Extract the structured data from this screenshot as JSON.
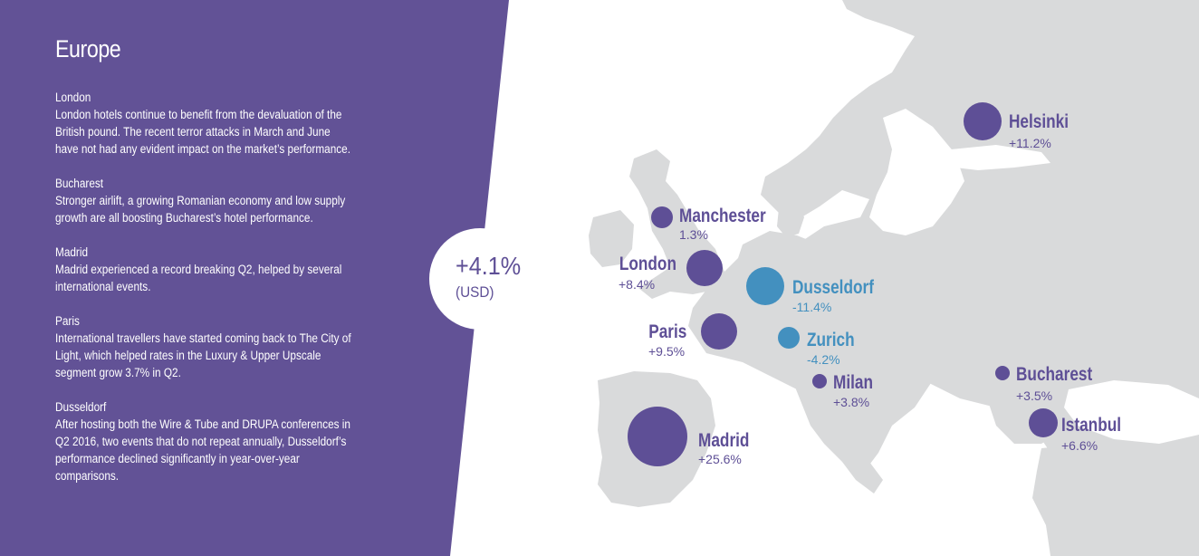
{
  "region_title": "Europe",
  "stories": [
    {
      "city": "London",
      "text": "London hotels continue to benefit from the devaluation of the British pound. The recent terror attacks in March and June have not had any evident impact on the market’s performance."
    },
    {
      "city": "Bucharest",
      "text": "Stronger airlift, a growing Romanian economy and low supply growth are all boosting Bucharest’s hotel performance."
    },
    {
      "city": "Madrid",
      "text": "Madrid experienced a record breaking Q2, helped by several international events."
    },
    {
      "city": "Paris",
      "text": "International travellers have started coming back to The City of Light, which helped rates in the Luxury & Upper Upscale segment grow 3.7% in Q2."
    },
    {
      "city": "Dusseldorf",
      "text": "After hosting both the Wire & Tube and DRUPA conferences in Q2 2016, two events that do not repeat annually, Dusseldorf’s performance declined significantly in year-over-year comparisons."
    }
  ],
  "overall": {
    "value": "+4.1%",
    "unit": "(USD)"
  },
  "colors": {
    "panel": "#625296",
    "positive": "#5e4f96",
    "negative": "#4390bf",
    "land": "#d9dadb",
    "background": "#ffffff"
  },
  "cities": [
    {
      "name": "Helsinki",
      "change": "+11.2%",
      "change_pct": 11.2,
      "status": "positive"
    },
    {
      "name": "Manchester",
      "change": "1.3%",
      "change_pct": 1.3,
      "status": "positive"
    },
    {
      "name": "London",
      "change": "+8.4%",
      "change_pct": 8.4,
      "status": "positive"
    },
    {
      "name": "Dusseldorf",
      "change": "-11.4%",
      "change_pct": -11.4,
      "status": "negative"
    },
    {
      "name": "Paris",
      "change": "+9.5%",
      "change_pct": 9.5,
      "status": "positive"
    },
    {
      "name": "Zurich",
      "change": "-4.2%",
      "change_pct": -4.2,
      "status": "negative"
    },
    {
      "name": "Milan",
      "change": "+3.8%",
      "change_pct": 3.8,
      "status": "positive"
    },
    {
      "name": "Bucharest",
      "change": "+3.5%",
      "change_pct": 3.5,
      "status": "positive"
    },
    {
      "name": "Istanbul",
      "change": "+6.6%",
      "change_pct": 6.6,
      "status": "positive"
    },
    {
      "name": "Madrid",
      "change": "+25.6%",
      "change_pct": 25.6,
      "status": "positive"
    }
  ]
}
